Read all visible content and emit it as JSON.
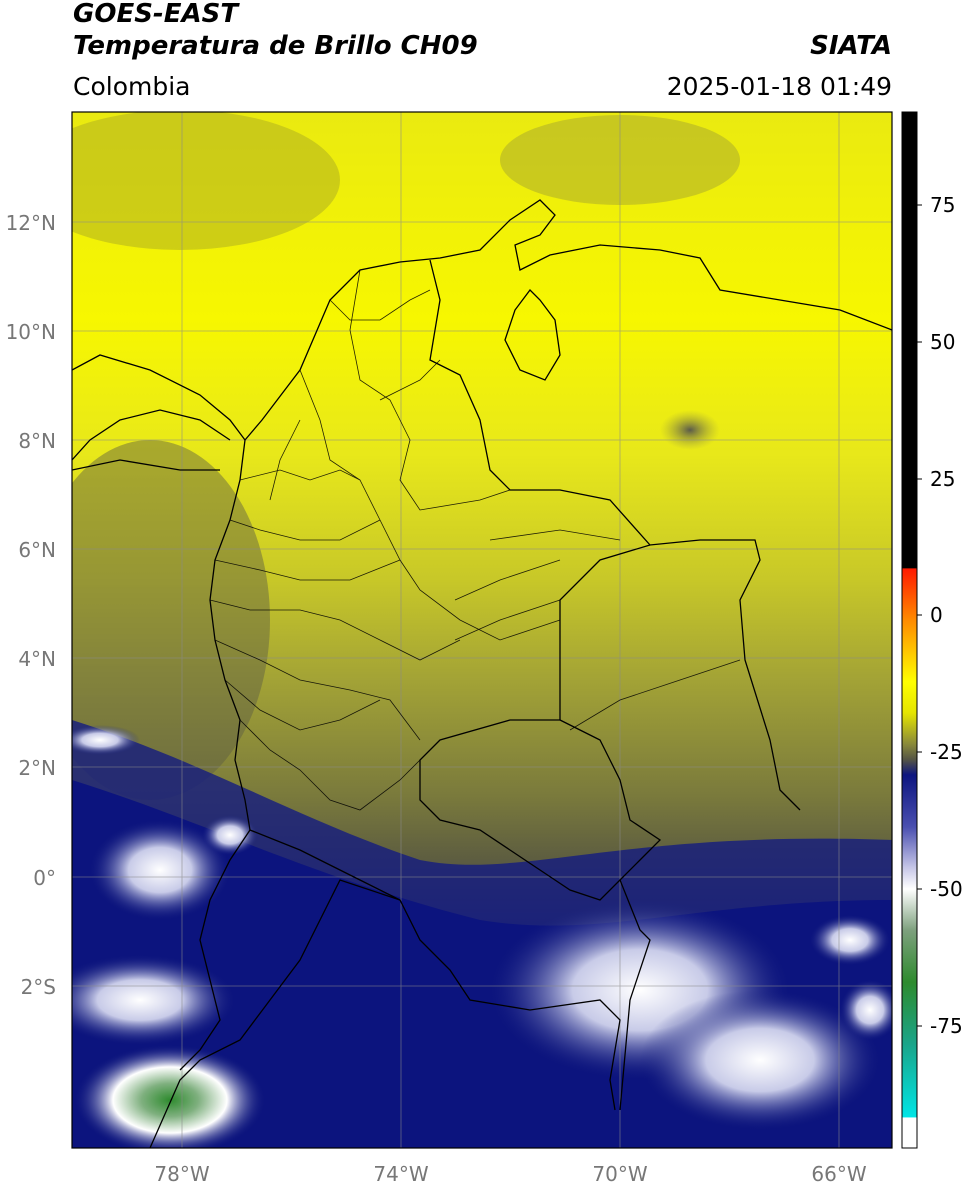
{
  "header": {
    "satellite": "GOES-EAST",
    "product": "Temperatura de Brillo CH09",
    "organization": "SIATA",
    "region": "Colombia",
    "timestamp": "2025-01-18 01:49"
  },
  "map": {
    "extent": {
      "lon_min": -80,
      "lon_max": -65,
      "lat_min": -5,
      "lat_max": 14
    },
    "lat_ticks": [
      "12°N",
      "10°N",
      "8°N",
      "6°N",
      "4°N",
      "2°N",
      "0°",
      "2°S"
    ],
    "lon_ticks": [
      "78°W",
      "74°W",
      "70°W",
      "66°W"
    ]
  },
  "colorbar": {
    "ticks": [
      "75",
      "50",
      "25",
      "0",
      "-25",
      "-50",
      "-75"
    ],
    "colors": {
      "black": "#000000",
      "red": "#ff1a00",
      "yellow": "#ffff00",
      "olive": "#4f4f2a",
      "navy": "#0d1580",
      "white": "#ffffff",
      "green": "#2e8b2e",
      "cyan": "#00e5e5"
    }
  }
}
